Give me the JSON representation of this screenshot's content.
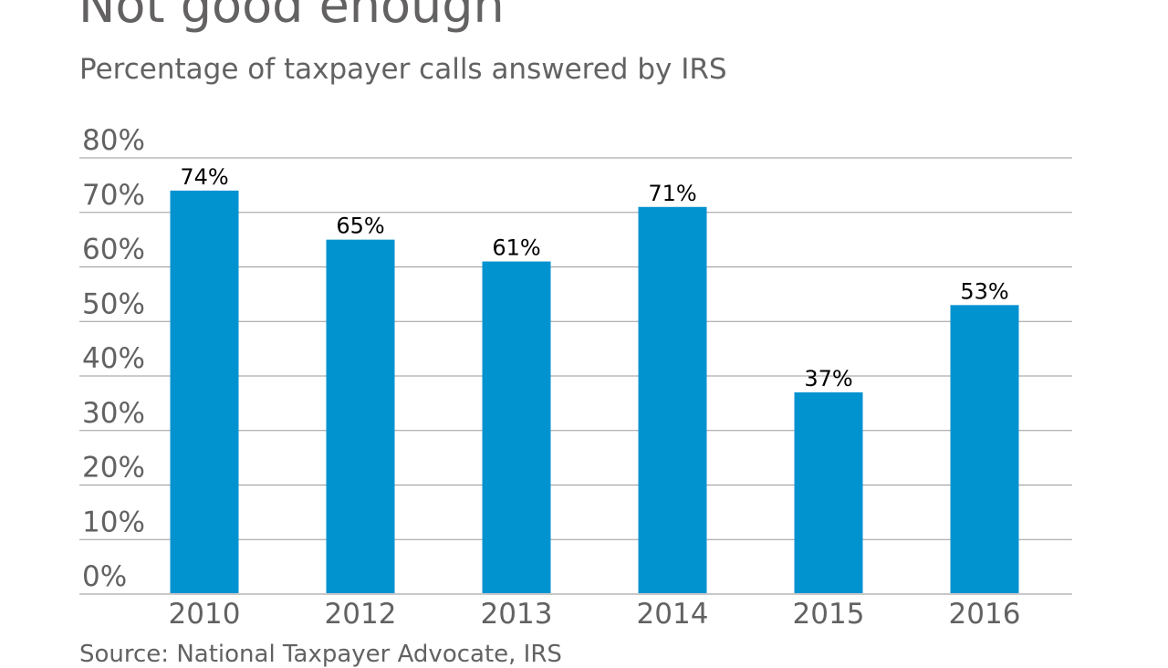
{
  "chart_data": {
    "type": "bar",
    "title": "Not good enough",
    "subtitle": "Percentage of taxpayer calls answered by IRS",
    "source": "Source: National Taxpayer Advocate, IRS",
    "categories": [
      "2010",
      "2012",
      "2013",
      "2014",
      "2015",
      "2016"
    ],
    "values": [
      74,
      65,
      61,
      71,
      37,
      53
    ],
    "data_labels": [
      "74%",
      "65%",
      "61%",
      "71%",
      "37%",
      "53%"
    ],
    "y_ticks": [
      "0%",
      "10%",
      "20%",
      "30%",
      "40%",
      "50%",
      "60%",
      "70%",
      "80%"
    ],
    "ylim": [
      0,
      80
    ],
    "grid": true,
    "bar_color": "#0093d0"
  }
}
